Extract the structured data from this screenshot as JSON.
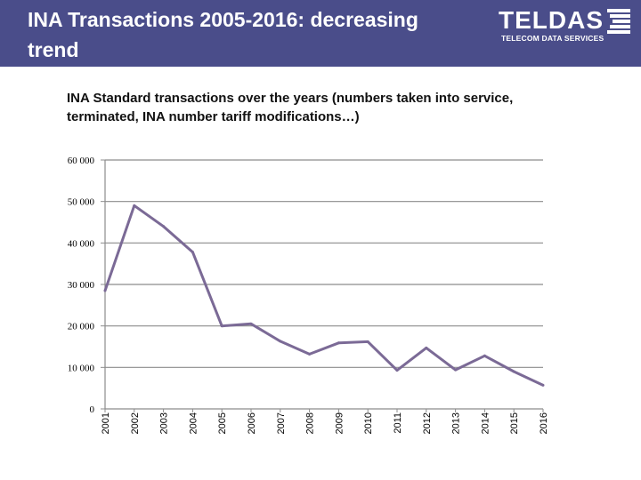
{
  "slide": {
    "title": "INA Transactions 2005-2016: decreasing trend",
    "header_color": "#4a4d8a"
  },
  "logo": {
    "name": "TELDAS",
    "tagline": "TELECOM DATA SERVICES"
  },
  "chart_data": {
    "type": "line",
    "title": "INA Standard transactions over the years (numbers taken into service, terminated, INA number tariff modifications…)",
    "xlabel": "",
    "ylabel": "",
    "categories": [
      "2001",
      "2002",
      "2003",
      "2004",
      "2005",
      "2006",
      "2007",
      "2008",
      "2009",
      "2010",
      "2011",
      "2012",
      "2013",
      "2014",
      "2015",
      "2016"
    ],
    "series": [
      {
        "name": "INA Standard transactions",
        "color": "#7b6a96",
        "values": [
          28500,
          49000,
          44000,
          37800,
          20000,
          20500,
          16300,
          13200,
          15900,
          16200,
          9300,
          14700,
          9400,
          12800,
          9000,
          5700
        ]
      }
    ],
    "ylim": [
      0,
      60000
    ],
    "yticks": [
      0,
      10000,
      20000,
      30000,
      40000,
      50000,
      60000
    ],
    "ytick_labels": [
      "0",
      "10 000",
      "20 000",
      "30 000",
      "40 000",
      "50 000",
      "60 000"
    ],
    "grid": true,
    "legend": "none"
  }
}
